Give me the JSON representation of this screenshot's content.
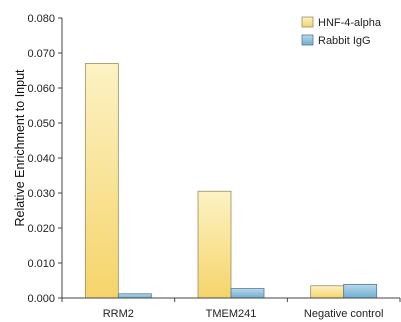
{
  "chart_data": {
    "type": "bar",
    "title": "",
    "xlabel": "",
    "ylabel": "Relative Enrichment to Input",
    "ylim": [
      0,
      0.08
    ],
    "yticks": [
      "0.000",
      "0.010",
      "0.020",
      "0.030",
      "0.040",
      "0.050",
      "0.060",
      "0.070",
      "0.080"
    ],
    "categories": [
      "RRM2",
      "TMEM241",
      "Negative control"
    ],
    "series": [
      {
        "name": "HNF-4-alpha",
        "values": [
          0.067,
          0.0305,
          0.0035
        ],
        "color_top": "#FCF2C4",
        "color_bottom": "#F5D46A",
        "stroke": "#9C8E63"
      },
      {
        "name": "Rabbit IgG",
        "values": [
          0.0012,
          0.0027,
          0.0039
        ],
        "color_top": "#B9D9EA",
        "color_bottom": "#6FAED1",
        "stroke": "#4F7C97"
      }
    ],
    "grid": false,
    "legend_position": "top-right"
  }
}
